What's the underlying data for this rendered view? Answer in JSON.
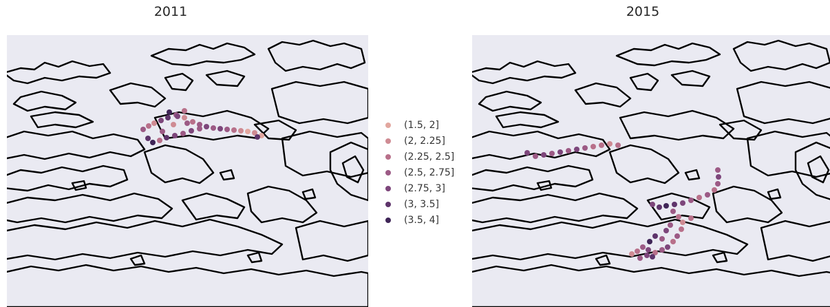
{
  "panels": [
    {
      "title": "2011"
    },
    {
      "title": "2015"
    }
  ],
  "legend": {
    "items": [
      {
        "label": "(1.5, 2]",
        "color": "#e2a79f"
      },
      {
        "label": "(2, 2.25]",
        "color": "#cf8b93"
      },
      {
        "label": "(2.25, 2.5]",
        "color": "#b8708a"
      },
      {
        "label": "(2.5, 2.75]",
        "color": "#9c5a85"
      },
      {
        "label": "(2.75, 3]",
        "color": "#7d467b"
      },
      {
        "label": "(3, 3.5]",
        "color": "#5e346b"
      },
      {
        "label": "(3.5, 4]",
        "color": "#3f2557"
      }
    ]
  },
  "colors": {
    "map_background": "#eaeaf2",
    "coastline": "#000000"
  },
  "icons": [
    "coastline-map",
    "observation-dot"
  ]
}
